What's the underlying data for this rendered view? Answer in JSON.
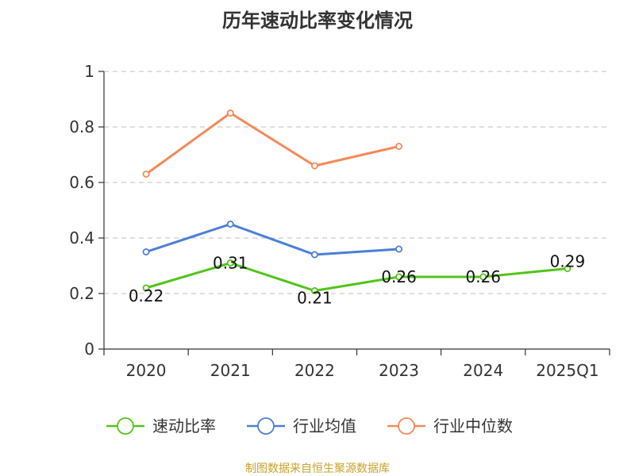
{
  "chart_data": {
    "type": "line",
    "title": "历年速动比率变化情况",
    "categories": [
      "2020",
      "2021",
      "2022",
      "2023",
      "2024",
      "2025Q1"
    ],
    "ylim": [
      0,
      1
    ],
    "yticks": [
      0,
      0.2,
      0.4,
      0.6,
      0.8,
      1
    ],
    "ytick_labels": [
      "0",
      "0.2",
      "0.4",
      "0.6",
      "0.8",
      "1"
    ],
    "grid": "horizontal dashed",
    "legend_position": "bottom",
    "series": [
      {
        "name": "速动比率",
        "color": "#52c41a",
        "values": [
          0.22,
          0.31,
          0.21,
          0.26,
          0.26,
          0.29
        ],
        "labels": [
          "0.22",
          "0.31",
          "0.21",
          "0.26",
          "0.26",
          "0.29"
        ]
      },
      {
        "name": "行业均值",
        "color": "#4a7fd8",
        "values": [
          0.35,
          0.45,
          0.34,
          0.36,
          null,
          null
        ]
      },
      {
        "name": "行业中位数",
        "color": "#f5895a",
        "values": [
          0.63,
          0.85,
          0.66,
          0.73,
          null,
          null
        ]
      }
    ]
  },
  "source_text": "制图数据来自恒生聚源数据库",
  "source_color": "#c9a227"
}
